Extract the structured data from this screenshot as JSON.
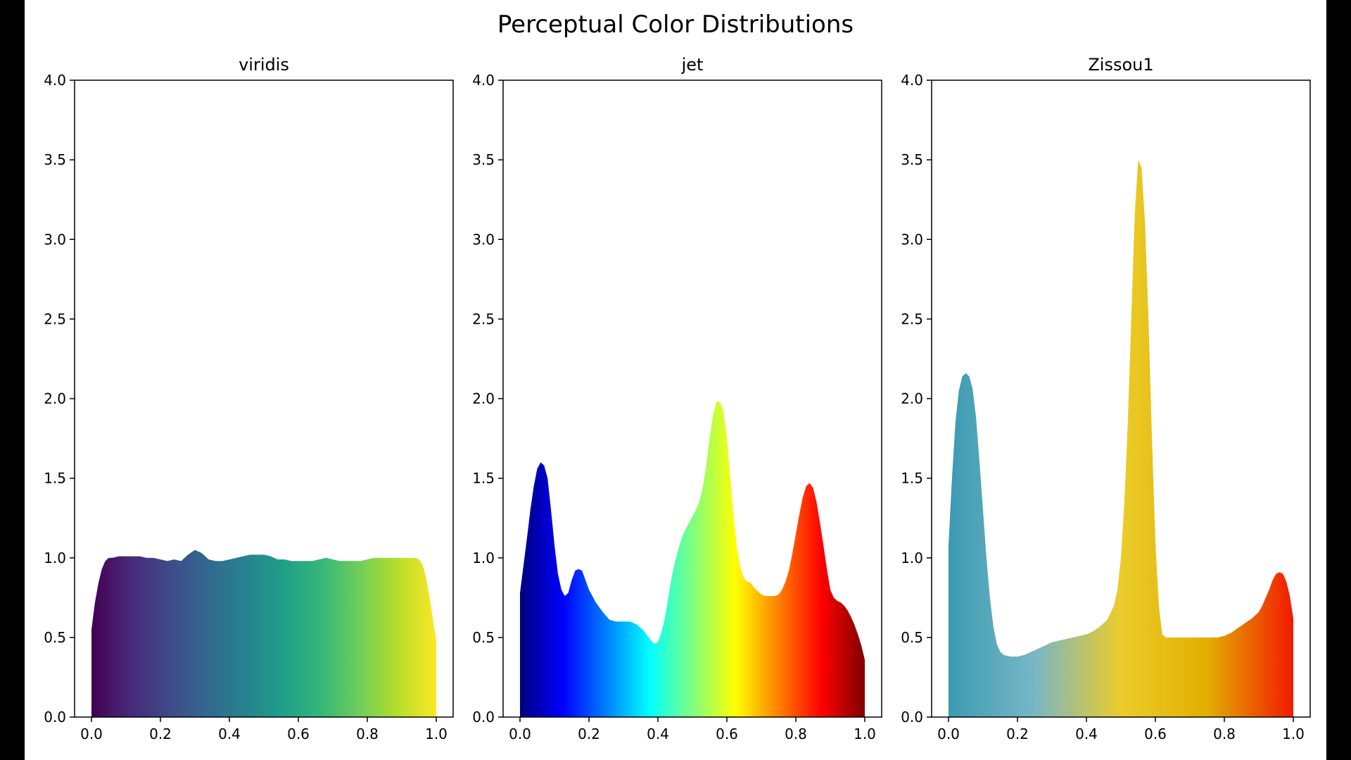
{
  "figure": {
    "title": "Perceptual Color Distributions"
  },
  "chart_data": [
    {
      "type": "area",
      "title": "viridis",
      "xlabel": "",
      "ylabel": "",
      "xlim": [
        0.0,
        1.0
      ],
      "ylim": [
        0.0,
        4.0
      ],
      "x_ticks": [
        "0.0",
        "0.2",
        "0.4",
        "0.6",
        "0.8",
        "1.0"
      ],
      "y_ticks": [
        "0.0",
        "0.5",
        "1.0",
        "1.5",
        "2.0",
        "2.5",
        "3.0",
        "3.5",
        "4.0"
      ],
      "grid": false,
      "colormap": [
        "#440154",
        "#482878",
        "#3e4989",
        "#31688e",
        "#26828e",
        "#1f9e89",
        "#35b779",
        "#6ece58",
        "#b5de2b",
        "#fde725"
      ],
      "x": [
        0.0,
        0.01,
        0.02,
        0.03,
        0.04,
        0.05,
        0.06,
        0.08,
        0.1,
        0.12,
        0.14,
        0.16,
        0.18,
        0.2,
        0.22,
        0.24,
        0.26,
        0.28,
        0.3,
        0.32,
        0.34,
        0.36,
        0.38,
        0.4,
        0.42,
        0.44,
        0.46,
        0.48,
        0.5,
        0.52,
        0.54,
        0.56,
        0.58,
        0.6,
        0.62,
        0.64,
        0.66,
        0.68,
        0.7,
        0.72,
        0.74,
        0.76,
        0.78,
        0.8,
        0.82,
        0.84,
        0.86,
        0.88,
        0.9,
        0.92,
        0.94,
        0.95,
        0.96,
        0.97,
        0.98,
        0.99,
        1.0
      ],
      "y": [
        0.55,
        0.72,
        0.84,
        0.93,
        0.98,
        1.0,
        1.0,
        1.01,
        1.01,
        1.01,
        1.01,
        1.0,
        1.0,
        0.99,
        0.98,
        0.99,
        0.98,
        1.02,
        1.05,
        1.03,
        0.99,
        0.98,
        0.98,
        0.99,
        1.0,
        1.01,
        1.02,
        1.02,
        1.02,
        1.01,
        0.99,
        0.99,
        0.98,
        0.98,
        0.98,
        0.98,
        0.99,
        1.0,
        0.99,
        0.98,
        0.98,
        0.98,
        0.98,
        0.99,
        1.0,
        1.0,
        1.0,
        1.0,
        1.0,
        1.0,
        1.0,
        0.99,
        0.96,
        0.88,
        0.76,
        0.62,
        0.48
      ]
    },
    {
      "type": "area",
      "title": "jet",
      "xlabel": "",
      "ylabel": "",
      "xlim": [
        0.0,
        1.0
      ],
      "ylim": [
        0.0,
        4.0
      ],
      "x_ticks": [
        "0.0",
        "0.2",
        "0.4",
        "0.6",
        "0.8",
        "1.0"
      ],
      "y_ticks": [
        "0.0",
        "0.5",
        "1.0",
        "1.5",
        "2.0",
        "2.5",
        "3.0",
        "3.5",
        "4.0"
      ],
      "grid": false,
      "colormap": [
        "#00007f",
        "#0000ff",
        "#007fff",
        "#00ffff",
        "#7fff7f",
        "#ffff00",
        "#ff7f00",
        "#ff0000",
        "#7f0000"
      ],
      "x": [
        0.0,
        0.01,
        0.02,
        0.03,
        0.04,
        0.05,
        0.06,
        0.07,
        0.08,
        0.09,
        0.1,
        0.11,
        0.12,
        0.13,
        0.14,
        0.15,
        0.16,
        0.17,
        0.18,
        0.19,
        0.2,
        0.22,
        0.24,
        0.26,
        0.28,
        0.3,
        0.32,
        0.34,
        0.36,
        0.37,
        0.38,
        0.39,
        0.4,
        0.41,
        0.42,
        0.43,
        0.44,
        0.45,
        0.46,
        0.47,
        0.48,
        0.49,
        0.5,
        0.51,
        0.52,
        0.53,
        0.54,
        0.55,
        0.56,
        0.57,
        0.58,
        0.59,
        0.6,
        0.61,
        0.62,
        0.63,
        0.64,
        0.65,
        0.66,
        0.67,
        0.68,
        0.69,
        0.7,
        0.71,
        0.72,
        0.73,
        0.74,
        0.75,
        0.76,
        0.77,
        0.78,
        0.79,
        0.8,
        0.81,
        0.82,
        0.83,
        0.84,
        0.85,
        0.86,
        0.87,
        0.88,
        0.89,
        0.9,
        0.91,
        0.92,
        0.93,
        0.94,
        0.95,
        0.96,
        0.97,
        0.98,
        0.99,
        1.0
      ],
      "y": [
        0.78,
        0.95,
        1.12,
        1.3,
        1.45,
        1.56,
        1.6,
        1.58,
        1.5,
        1.3,
        1.08,
        0.9,
        0.8,
        0.76,
        0.78,
        0.86,
        0.92,
        0.93,
        0.92,
        0.86,
        0.8,
        0.72,
        0.66,
        0.61,
        0.6,
        0.6,
        0.6,
        0.58,
        0.54,
        0.51,
        0.48,
        0.46,
        0.47,
        0.53,
        0.62,
        0.75,
        0.88,
        0.98,
        1.06,
        1.13,
        1.18,
        1.22,
        1.26,
        1.3,
        1.35,
        1.44,
        1.58,
        1.75,
        1.9,
        1.98,
        1.98,
        1.92,
        1.75,
        1.5,
        1.25,
        1.05,
        0.93,
        0.87,
        0.85,
        0.84,
        0.81,
        0.79,
        0.77,
        0.76,
        0.76,
        0.76,
        0.76,
        0.77,
        0.8,
        0.85,
        0.92,
        1.03,
        1.15,
        1.27,
        1.38,
        1.45,
        1.47,
        1.44,
        1.35,
        1.22,
        1.08,
        0.93,
        0.8,
        0.75,
        0.73,
        0.72,
        0.7,
        0.67,
        0.63,
        0.58,
        0.52,
        0.45,
        0.36
      ]
    },
    {
      "type": "area",
      "title": "Zissou1",
      "xlabel": "",
      "ylabel": "",
      "xlim": [
        0.0,
        1.0
      ],
      "ylim": [
        0.0,
        4.0
      ],
      "x_ticks": [
        "0.0",
        "0.2",
        "0.4",
        "0.6",
        "0.8",
        "1.0"
      ],
      "y_ticks": [
        "0.0",
        "0.5",
        "1.0",
        "1.5",
        "2.0",
        "2.5",
        "3.0",
        "3.5",
        "4.0"
      ],
      "grid": false,
      "colormap": [
        "#3b9ab2",
        "#78b7c5",
        "#ebcc2a",
        "#e1af00",
        "#f21a00"
      ],
      "x": [
        0.0,
        0.01,
        0.02,
        0.03,
        0.04,
        0.05,
        0.06,
        0.07,
        0.08,
        0.09,
        0.1,
        0.11,
        0.12,
        0.13,
        0.14,
        0.15,
        0.16,
        0.17,
        0.18,
        0.19,
        0.2,
        0.22,
        0.24,
        0.26,
        0.28,
        0.3,
        0.32,
        0.34,
        0.36,
        0.38,
        0.4,
        0.42,
        0.44,
        0.46,
        0.48,
        0.49,
        0.5,
        0.51,
        0.52,
        0.53,
        0.54,
        0.55,
        0.56,
        0.57,
        0.58,
        0.59,
        0.6,
        0.61,
        0.62,
        0.63,
        0.64,
        0.65,
        0.66,
        0.68,
        0.7,
        0.72,
        0.74,
        0.76,
        0.78,
        0.8,
        0.82,
        0.84,
        0.86,
        0.88,
        0.9,
        0.91,
        0.92,
        0.93,
        0.94,
        0.95,
        0.96,
        0.97,
        0.98,
        0.99,
        1.0
      ],
      "y": [
        1.08,
        1.5,
        1.85,
        2.05,
        2.14,
        2.16,
        2.14,
        2.06,
        1.88,
        1.6,
        1.3,
        1.0,
        0.75,
        0.57,
        0.46,
        0.41,
        0.39,
        0.385,
        0.38,
        0.38,
        0.38,
        0.39,
        0.41,
        0.43,
        0.45,
        0.47,
        0.48,
        0.49,
        0.5,
        0.51,
        0.52,
        0.54,
        0.57,
        0.61,
        0.7,
        0.8,
        1.0,
        1.35,
        1.85,
        2.5,
        3.15,
        3.5,
        3.45,
        3.1,
        2.5,
        1.75,
        1.1,
        0.7,
        0.52,
        0.5,
        0.5,
        0.5,
        0.5,
        0.5,
        0.5,
        0.5,
        0.5,
        0.5,
        0.5,
        0.51,
        0.53,
        0.56,
        0.59,
        0.62,
        0.66,
        0.7,
        0.75,
        0.8,
        0.86,
        0.9,
        0.91,
        0.9,
        0.85,
        0.76,
        0.62
      ]
    }
  ]
}
